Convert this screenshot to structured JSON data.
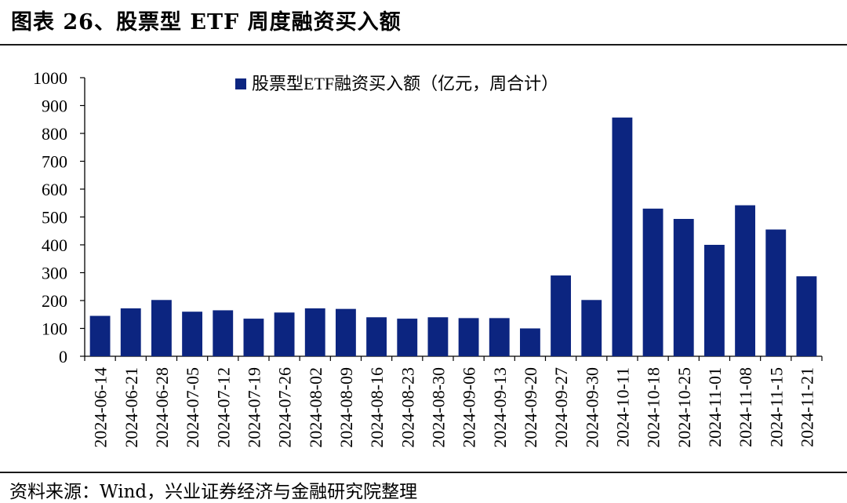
{
  "figure": {
    "title": "图表 26、股票型 ETF 周度融资买入额",
    "source": "资料来源：Wind，兴业证券经济与金融研究院整理"
  },
  "colors": {
    "bar": "#0c2580",
    "axis": "#000000",
    "text": "#000000"
  },
  "chart_data": {
    "type": "bar",
    "title": "",
    "xlabel": "",
    "ylabel": "",
    "ylim": [
      0,
      1000
    ],
    "yticks": [
      "0",
      "100",
      "200",
      "300",
      "400",
      "500",
      "600",
      "700",
      "800",
      "900",
      "1000"
    ],
    "grid": false,
    "legend_position": "top-center",
    "categories": [
      "2024-06-14",
      "2024-06-21",
      "2024-06-28",
      "2024-07-05",
      "2024-07-12",
      "2024-07-19",
      "2024-07-26",
      "2024-08-02",
      "2024-08-09",
      "2024-08-16",
      "2024-08-23",
      "2024-08-30",
      "2024-09-06",
      "2024-09-13",
      "2024-09-20",
      "2024-09-27",
      "2024-09-30",
      "2024-10-11",
      "2024-10-18",
      "2024-10-25",
      "2024-11-01",
      "2024-11-08",
      "2024-11-15",
      "2024-11-21"
    ],
    "series": [
      {
        "name": "股票型ETF融资买入额（亿元，周合计）",
        "values": [
          145,
          172,
          202,
          160,
          165,
          135,
          157,
          172,
          170,
          140,
          135,
          140,
          137,
          137,
          100,
          290,
          202,
          857,
          530,
          493,
          400,
          542,
          455,
          287
        ]
      }
    ]
  }
}
